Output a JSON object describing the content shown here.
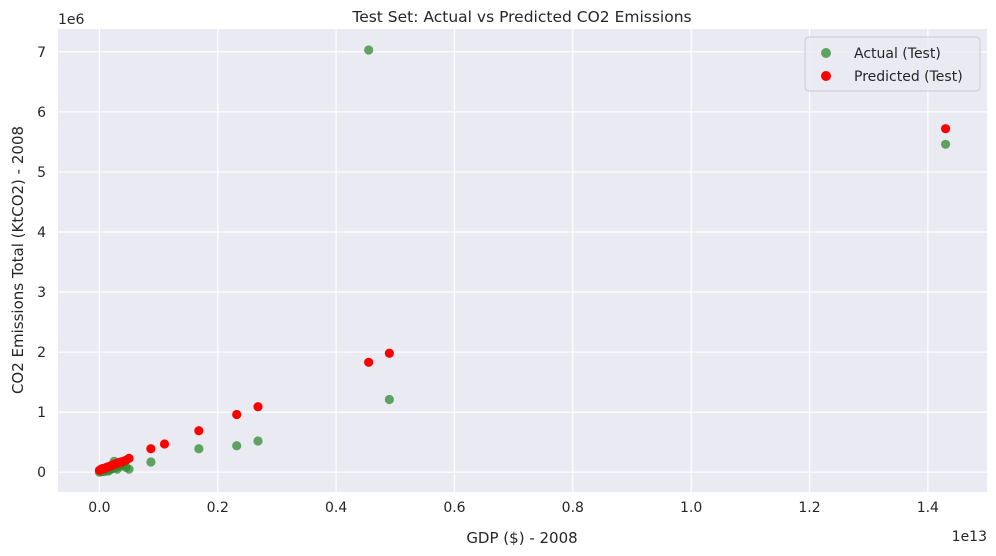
{
  "chart_data": {
    "type": "scatter",
    "title": "Test Set: Actual vs Predicted CO2 Emissions",
    "xlabel": "GDP ($) - 2008",
    "ylabel": "CO2 Emissions Total (KtCO2) - 2008",
    "x_offset_label": "1e13",
    "y_offset_label": "1e6",
    "x_ticks": [
      0.0,
      0.2,
      0.4,
      0.6,
      0.8,
      1.0,
      1.2,
      1.4
    ],
    "x_tick_labels": [
      "0.0",
      "0.2",
      "0.4",
      "0.6",
      "0.8",
      "1.0",
      "1.2",
      "1.4"
    ],
    "y_ticks": [
      0,
      1,
      2,
      3,
      4,
      5,
      6,
      7
    ],
    "y_tick_labels": [
      "0",
      "1",
      "2",
      "3",
      "4",
      "5",
      "6",
      "7"
    ],
    "xlim": [
      -0.07,
      1.5
    ],
    "ylim": [
      -0.33,
      7.38
    ],
    "grid": true,
    "legend_position": "top-right",
    "background_color": "#eaeaf2",
    "grid_color": "#ffffff",
    "series": [
      {
        "name": "Actual (Test)",
        "color": "#2e8b2e",
        "alpha": 0.75,
        "points": [
          [
            0.0,
            0.0
          ],
          [
            0.003,
            0.01
          ],
          [
            0.005,
            0.02
          ],
          [
            0.008,
            0.01
          ],
          [
            0.01,
            0.03
          ],
          [
            0.012,
            0.05
          ],
          [
            0.015,
            0.02
          ],
          [
            0.018,
            0.04
          ],
          [
            0.02,
            0.1
          ],
          [
            0.022,
            0.06
          ],
          [
            0.025,
            0.18
          ],
          [
            0.028,
            0.08
          ],
          [
            0.03,
            0.05
          ],
          [
            0.033,
            0.12
          ],
          [
            0.036,
            0.1
          ],
          [
            0.04,
            0.13
          ],
          [
            0.045,
            0.08
          ],
          [
            0.05,
            0.05
          ],
          [
            0.087,
            0.17
          ],
          [
            0.168,
            0.39
          ],
          [
            0.232,
            0.44
          ],
          [
            0.268,
            0.52
          ],
          [
            0.455,
            7.03
          ],
          [
            0.49,
            1.21
          ],
          [
            1.43,
            5.46
          ]
        ]
      },
      {
        "name": "Predicted (Test)",
        "color": "#ff0000",
        "alpha": 1.0,
        "points": [
          [
            0.0,
            0.03
          ],
          [
            0.003,
            0.05
          ],
          [
            0.005,
            0.06
          ],
          [
            0.008,
            0.06
          ],
          [
            0.01,
            0.07
          ],
          [
            0.012,
            0.08
          ],
          [
            0.015,
            0.09
          ],
          [
            0.018,
            0.1
          ],
          [
            0.02,
            0.11
          ],
          [
            0.022,
            0.12
          ],
          [
            0.025,
            0.13
          ],
          [
            0.028,
            0.14
          ],
          [
            0.03,
            0.15
          ],
          [
            0.033,
            0.16
          ],
          [
            0.036,
            0.17
          ],
          [
            0.04,
            0.18
          ],
          [
            0.045,
            0.2
          ],
          [
            0.05,
            0.23
          ],
          [
            0.087,
            0.39
          ],
          [
            0.11,
            0.47
          ],
          [
            0.168,
            0.69
          ],
          [
            0.232,
            0.96
          ],
          [
            0.268,
            1.09
          ],
          [
            0.455,
            1.83
          ],
          [
            0.49,
            1.98
          ],
          [
            1.43,
            5.72
          ]
        ]
      }
    ]
  }
}
